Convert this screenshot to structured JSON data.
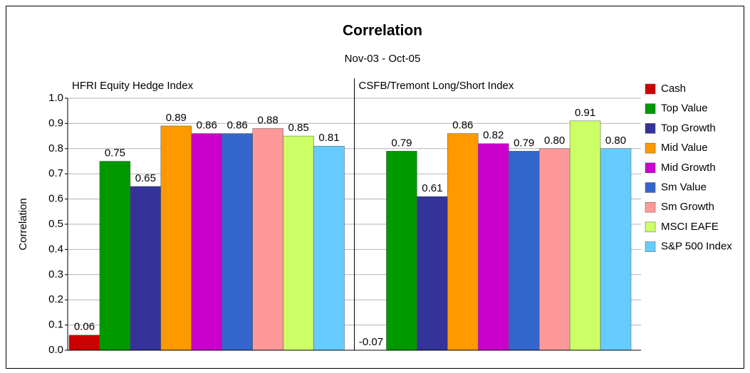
{
  "chart_data": {
    "type": "bar",
    "title": "Correlation",
    "subtitle": "Nov-03 - Oct-05",
    "y_label": "Correlation",
    "categories": [
      "HFRI Equity Hedge Index",
      "CSFB/Tremont Long/Short Index"
    ],
    "series": [
      {
        "name": "Cash",
        "color": "#cc0000",
        "values": [
          0.06,
          -0.07
        ],
        "value_labels": [
          "0.06",
          "-0.07"
        ]
      },
      {
        "name": "Top Value",
        "color": "#009900",
        "values": [
          0.75,
          0.79
        ],
        "value_labels": [
          "0.75",
          "0.79"
        ]
      },
      {
        "name": "Top Growth",
        "color": "#333399",
        "values": [
          0.65,
          0.61
        ],
        "value_labels": [
          "0.65",
          "0.61"
        ]
      },
      {
        "name": "Mid Value",
        "color": "#ff9900",
        "values": [
          0.89,
          0.86
        ],
        "value_labels": [
          "0.89",
          "0.86"
        ]
      },
      {
        "name": "Mid Growth",
        "color": "#cc00cc",
        "values": [
          0.86,
          0.82
        ],
        "value_labels": [
          "0.86",
          "0.82"
        ]
      },
      {
        "name": "Sm Value",
        "color": "#3366cc",
        "values": [
          0.86,
          0.79
        ],
        "value_labels": [
          "0.86",
          "0.79"
        ]
      },
      {
        "name": "Sm Growth",
        "color": "#ff9999",
        "values": [
          0.88,
          0.8
        ],
        "value_labels": [
          "0.88",
          "0.80"
        ]
      },
      {
        "name": "MSCI EAFE",
        "color": "#ccff66",
        "values": [
          0.85,
          0.91
        ],
        "value_labels": [
          "0.85",
          "0.91"
        ]
      },
      {
        "name": "S&P 500 Index",
        "color": "#66ccff",
        "values": [
          0.81,
          0.8
        ],
        "value_labels": [
          "0.81",
          "0.80"
        ]
      }
    ],
    "ylim": [
      0,
      1
    ],
    "yticks": [
      {
        "value": 0,
        "label": "0.0"
      },
      0.1,
      0.2,
      0.3,
      0.4,
      0.5,
      0.6,
      0.7,
      0.8,
      0.9,
      {
        "value": 1,
        "label": "1.0"
      }
    ],
    "grid": true,
    "legend": "right"
  }
}
